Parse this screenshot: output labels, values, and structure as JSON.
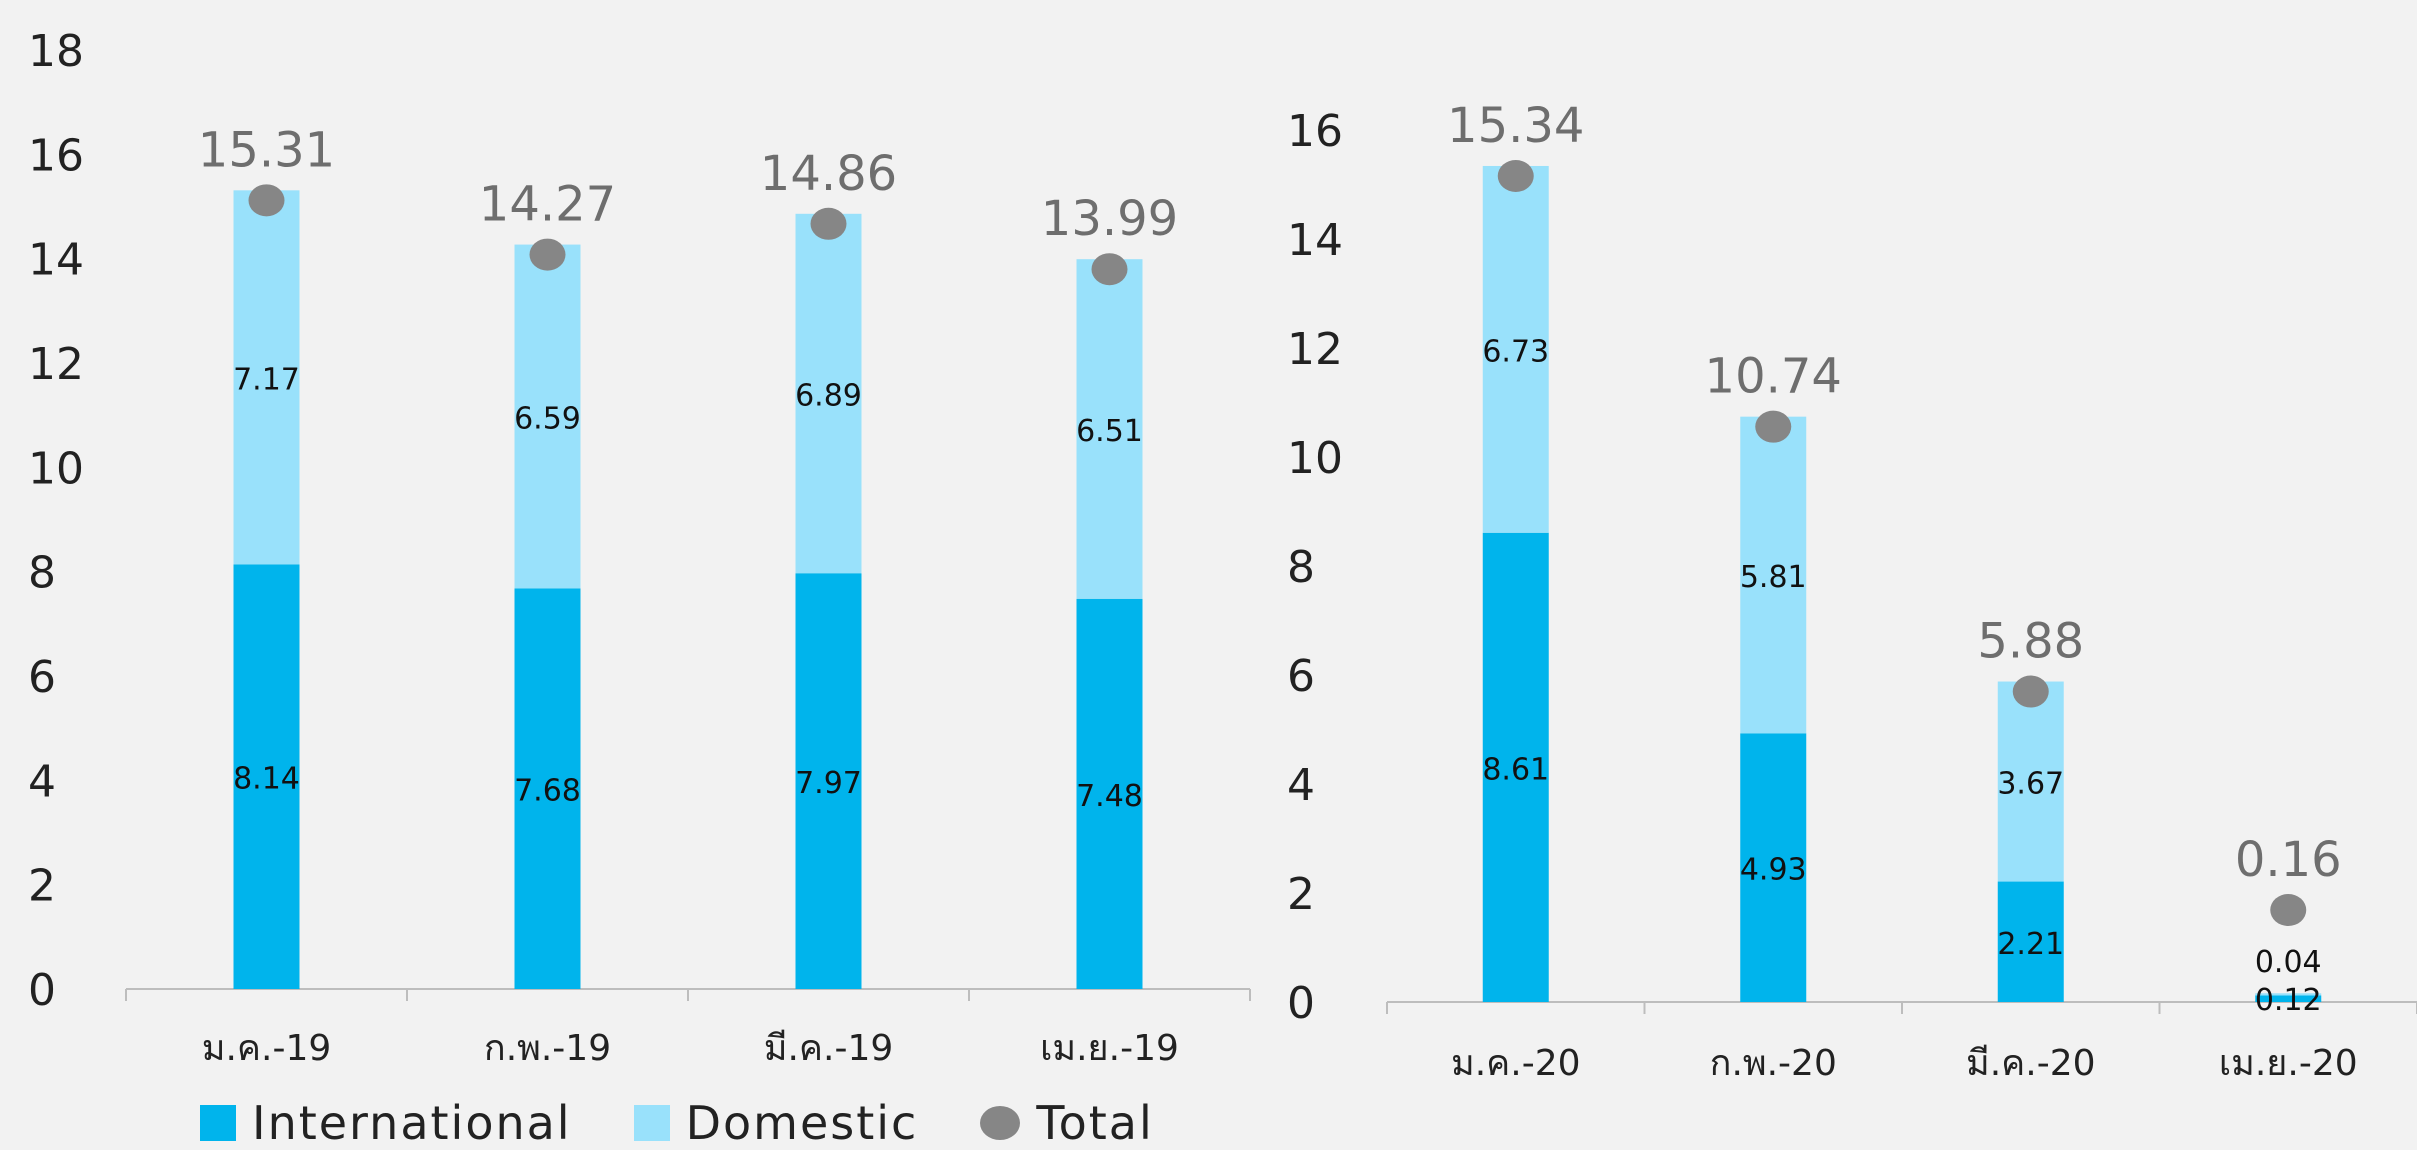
{
  "colors": {
    "international": "#00b4ec",
    "domestic": "#99e1fb",
    "total": "#868686",
    "axis_text": "#222222",
    "total_label": "#6e6e6e",
    "axis_line": "#bdbdbd"
  },
  "legend": {
    "international": "International",
    "domestic": "Domestic",
    "total": "Total"
  },
  "chart_data": [
    {
      "type": "bar",
      "stacked": true,
      "categories": [
        "ม.ค.-19",
        "ก.พ.-19",
        "มี.ค.-19",
        "เม.ย.-19"
      ],
      "series": [
        {
          "name": "International",
          "values": [
            8.14,
            7.68,
            7.97,
            7.48
          ]
        },
        {
          "name": "Domestic",
          "values": [
            7.17,
            6.59,
            6.89,
            6.51
          ]
        },
        {
          "name": "Total",
          "values": [
            15.31,
            14.27,
            14.86,
            13.99
          ],
          "marker": "circle"
        }
      ],
      "ylim": [
        0,
        18
      ],
      "yticks": [
        0,
        2,
        4,
        6,
        8,
        10,
        12,
        14,
        16,
        18
      ],
      "grid": false,
      "legend_position": "bottom"
    },
    {
      "type": "bar",
      "stacked": true,
      "categories": [
        "ม.ค.-20",
        "ก.พ.-20",
        "มี.ค.-20",
        "เม.ย.-20"
      ],
      "series": [
        {
          "name": "International",
          "values": [
            8.61,
            4.93,
            2.21,
            0.12
          ]
        },
        {
          "name": "Domestic",
          "values": [
            6.73,
            5.81,
            3.67,
            0.04
          ]
        },
        {
          "name": "Total",
          "values": [
            15.34,
            10.74,
            5.88,
            0.16
          ],
          "marker": "circle"
        }
      ],
      "ylim": [
        0,
        16
      ],
      "yticks": [
        0,
        2,
        4,
        6,
        8,
        10,
        12,
        14,
        16
      ],
      "grid": false,
      "legend_position": "none"
    }
  ]
}
